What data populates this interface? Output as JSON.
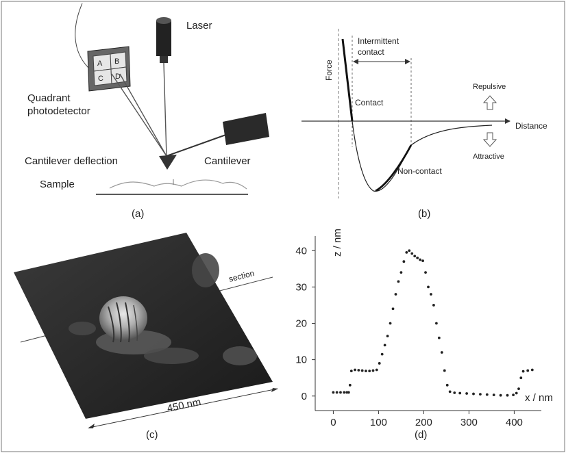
{
  "panel_a": {
    "label": "(a)",
    "laser": "Laser",
    "quadrant_line1": "Quadrant",
    "quadrant_line2": "photodetector",
    "cell_a": "A",
    "cell_b": "B",
    "cell_c": "C",
    "cell_d": "D",
    "cantilever_deflection": "Cantilever deflection",
    "cantilever": "Cantilever",
    "sample": "Sample"
  },
  "panel_b": {
    "label": "(b)",
    "y_axis": "Force",
    "x_axis": "Distance",
    "intermittent_line1": "Intermittent",
    "intermittent_line2": "contact",
    "contact": "Contact",
    "non_contact": "Non-contact",
    "repulsive": "Repulsive",
    "attractive": "Attractive"
  },
  "panel_c": {
    "label": "(c)",
    "section": "section",
    "scale": "450 nm"
  },
  "panel_d": {
    "label": "(d)",
    "chart_data": {
      "type": "scatter",
      "xlabel": "x / nm",
      "ylabel": "z / nm",
      "xlim": [
        -40,
        460
      ],
      "ylim": [
        -4,
        44
      ],
      "xticks": [
        0,
        100,
        200,
        300,
        400
      ],
      "yticks": [
        0,
        10,
        20,
        30,
        40
      ],
      "points": [
        [
          0,
          1
        ],
        [
          8,
          1
        ],
        [
          16,
          1
        ],
        [
          24,
          1
        ],
        [
          30,
          1
        ],
        [
          34,
          1
        ],
        [
          37,
          3
        ],
        [
          40,
          6.9
        ],
        [
          48,
          7.2
        ],
        [
          56,
          7.1
        ],
        [
          64,
          7
        ],
        [
          72,
          6.9
        ],
        [
          80,
          6.9
        ],
        [
          88,
          7
        ],
        [
          96,
          7.2
        ],
        [
          102,
          9
        ],
        [
          108,
          11.5
        ],
        [
          114,
          14
        ],
        [
          120,
          16.5
        ],
        [
          126,
          20
        ],
        [
          132,
          24
        ],
        [
          138,
          28
        ],
        [
          144,
          31.5
        ],
        [
          150,
          34
        ],
        [
          156,
          37
        ],
        [
          162,
          39.5
        ],
        [
          168,
          40
        ],
        [
          174,
          39.2
        ],
        [
          180,
          38.5
        ],
        [
          186,
          38
        ],
        [
          192,
          37.5
        ],
        [
          198,
          37.2
        ],
        [
          204,
          34
        ],
        [
          210,
          30
        ],
        [
          216,
          28
        ],
        [
          222,
          25
        ],
        [
          228,
          20
        ],
        [
          234,
          16
        ],
        [
          240,
          12
        ],
        [
          246,
          7
        ],
        [
          252,
          3
        ],
        [
          258,
          1.2
        ],
        [
          268,
          0.9
        ],
        [
          280,
          0.8
        ],
        [
          295,
          0.7
        ],
        [
          310,
          0.6
        ],
        [
          325,
          0.5
        ],
        [
          340,
          0.4
        ],
        [
          355,
          0.3
        ],
        [
          370,
          0.2
        ],
        [
          385,
          0.2
        ],
        [
          398,
          0.3
        ],
        [
          405,
          0.8
        ],
        [
          410,
          2
        ],
        [
          415,
          5
        ],
        [
          420,
          6.8
        ],
        [
          430,
          7
        ],
        [
          440,
          7.2
        ]
      ]
    }
  }
}
